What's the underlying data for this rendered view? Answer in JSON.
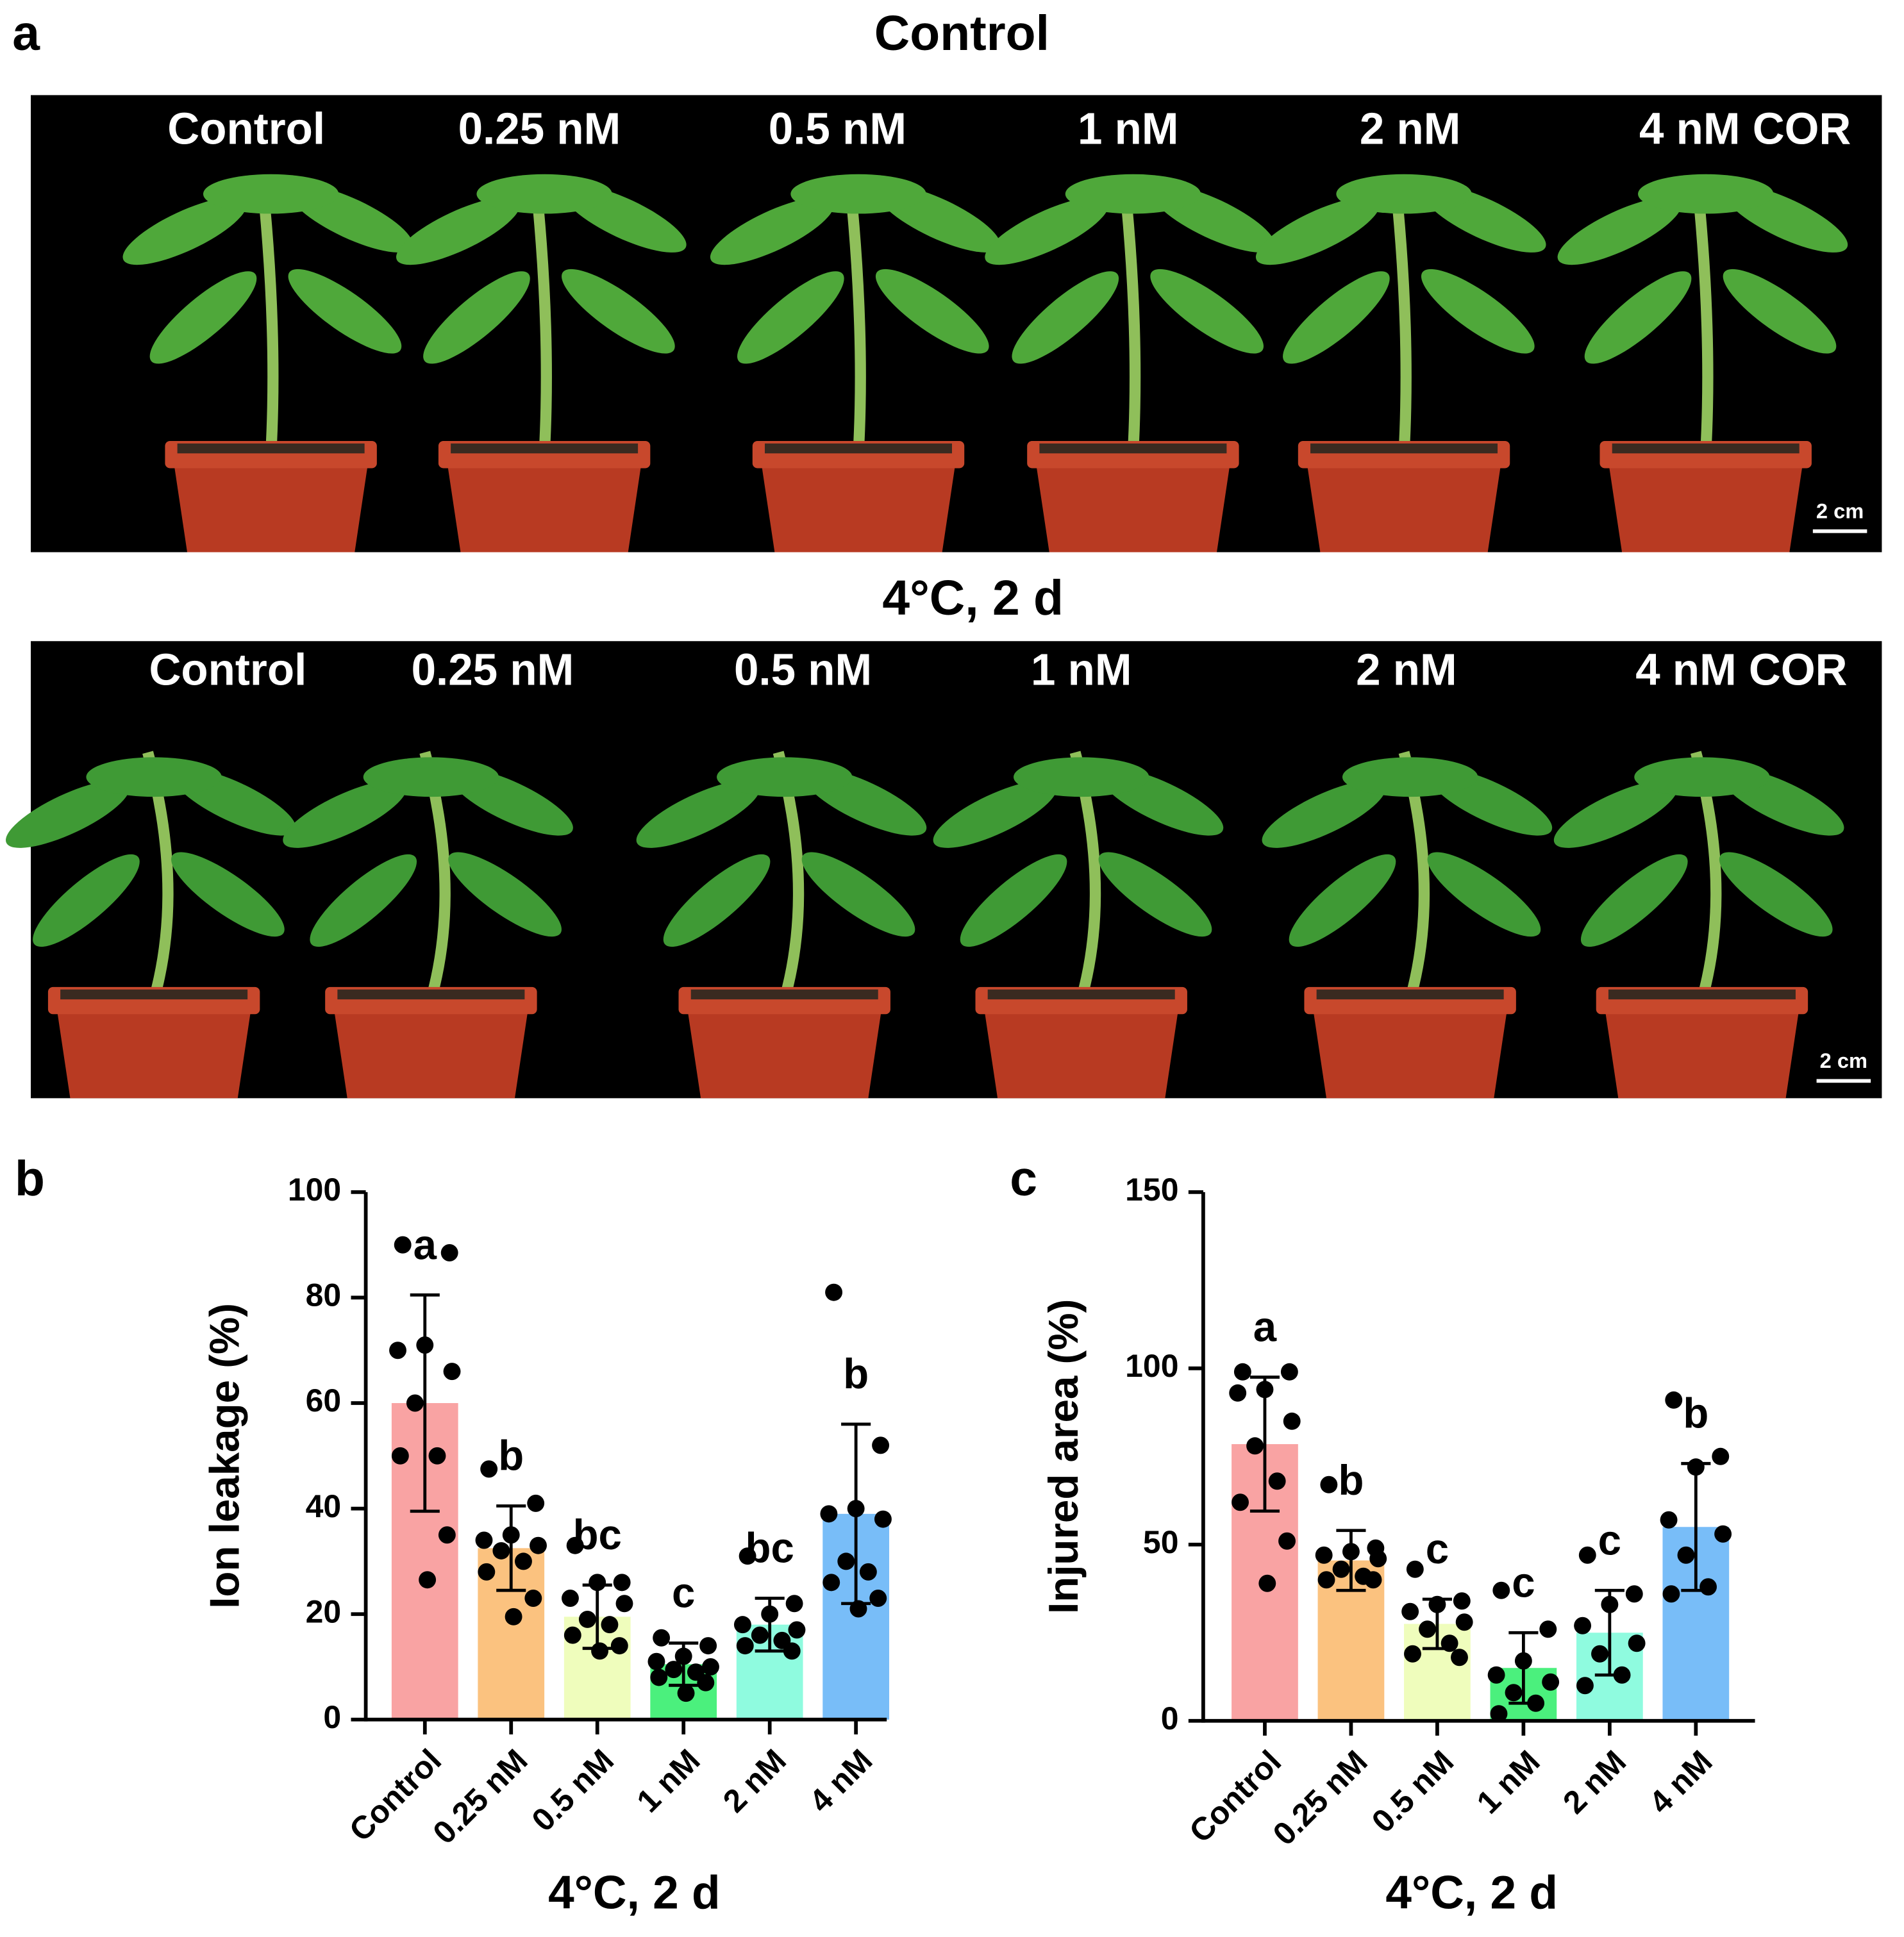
{
  "figure": {
    "panel_labels": [
      "a",
      "b",
      "c"
    ],
    "photos": [
      {
        "title": "Control",
        "labels": [
          "Control",
          "0.25 nM",
          "0.5 nM",
          "1 nM",
          "2 nM",
          "4 nM COR"
        ],
        "scale_bar": "2 cm"
      },
      {
        "title": "4°C, 2 d",
        "labels": [
          "Control",
          "0.25 nM",
          "0.5 nM",
          "1 nM",
          "2 nM",
          "4 nM COR"
        ],
        "scale_bar": "2 cm"
      }
    ]
  },
  "chart_data": [
    {
      "type": "bar",
      "ylabel": "Ion leakage (%)",
      "xlabel": "4°C, 2 d",
      "categories": [
        "Control",
        "0.25 nM",
        "0.5 nM",
        "1 nM",
        "2 nM",
        "4 nM"
      ],
      "values": [
        60,
        32.5,
        19.5,
        10.5,
        18,
        39
      ],
      "errors": [
        20.5,
        8,
        6,
        4,
        5,
        17
      ],
      "letters": [
        "a",
        "b",
        "bc",
        "c",
        "bc",
        "b"
      ],
      "points": [
        [
          90,
          88.5,
          71,
          70,
          66,
          60,
          50,
          50,
          35,
          26.5
        ],
        [
          47.5,
          41,
          35,
          34,
          33,
          32,
          30,
          28,
          23,
          19.5
        ],
        [
          33,
          26,
          26,
          23,
          22,
          19,
          18,
          16,
          14,
          13
        ],
        [
          15.5,
          14,
          12,
          11,
          10,
          9.5,
          9,
          8,
          7,
          5
        ],
        [
          31,
          22,
          20,
          18,
          17,
          16,
          15,
          14,
          13
        ],
        [
          81,
          52,
          40,
          39,
          38,
          30,
          28,
          26,
          23,
          21
        ]
      ],
      "colors": [
        "#f9a3a3",
        "#fbc27f",
        "#effdbc",
        "#4bf07d",
        "#8ffbdf",
        "#78bdf8"
      ],
      "ylim": [
        0,
        100
      ],
      "yticks": [
        0,
        20,
        40,
        60,
        80,
        100
      ]
    },
    {
      "type": "bar",
      "ylabel": "Injured area (%)",
      "xlabel": "4°C, 2 d",
      "categories": [
        "Control",
        "0.25 nM",
        "0.5 nM",
        "1 nM",
        "2 nM",
        "4 nM"
      ],
      "values": [
        78.5,
        45.5,
        27.5,
        15,
        25,
        55
      ],
      "errors": [
        19,
        8.5,
        7,
        10,
        12,
        18
      ],
      "letters": [
        "a",
        "b",
        "c",
        "c",
        "c",
        "b"
      ],
      "points": [
        [
          99,
          99,
          94,
          93,
          85,
          78,
          68,
          62,
          51,
          39
        ],
        [
          67,
          49,
          48,
          47,
          46,
          43,
          41,
          40,
          40
        ],
        [
          43,
          34,
          33,
          31,
          28,
          26,
          22,
          19,
          18
        ],
        [
          37,
          26,
          17,
          13,
          11,
          8,
          5,
          2
        ],
        [
          47,
          36,
          33,
          27,
          22,
          19,
          13,
          10
        ],
        [
          91,
          75,
          72,
          57,
          53,
          47,
          38,
          36
        ]
      ],
      "colors": [
        "#f9a3a3",
        "#fbc27f",
        "#effdbc",
        "#4bf07d",
        "#8ffbdf",
        "#78bdf8"
      ],
      "ylim": [
        0,
        150
      ],
      "yticks": [
        0,
        50,
        100,
        150
      ]
    }
  ]
}
